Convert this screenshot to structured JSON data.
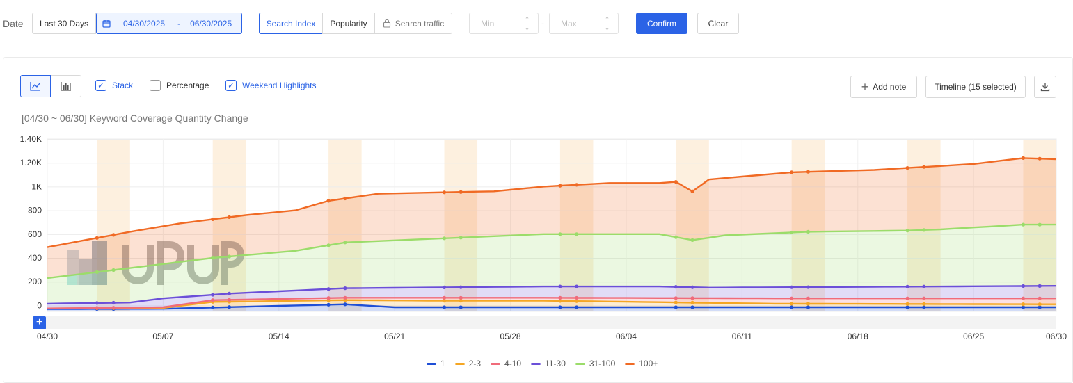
{
  "filters": {
    "date_label": "Date",
    "preset": "Last 30 Days",
    "start_date": "04/30/2025",
    "separator": "-",
    "end_date": "06/30/2025",
    "metric_tabs": [
      "Search Index",
      "Popularity",
      "Search traffic"
    ],
    "min_placeholder": "Min",
    "range_dash": "-",
    "max_placeholder": "Max",
    "confirm_label": "Confirm",
    "clear_label": "Clear"
  },
  "toolbar": {
    "stack_label": "Stack",
    "stack_checked": true,
    "percentage_label": "Percentage",
    "percentage_checked": false,
    "weekend_label": "Weekend Highlights",
    "weekend_checked": true,
    "add_note_label": "Add note",
    "timeline_label": "Timeline (15 selected)"
  },
  "chart_data": {
    "type": "area",
    "title": "[04/30 ~ 06/30] Keyword Coverage Quantity Change",
    "stacked": true,
    "weekend_highlights": true,
    "y_ticks": [
      "1.40K",
      "1.20K",
      "1K",
      "800",
      "600",
      "400",
      "200",
      "0"
    ],
    "x_ticks": [
      "04/30",
      "05/07",
      "05/14",
      "05/21",
      "05/28",
      "06/04",
      "06/11",
      "06/18",
      "06/25",
      "06/30"
    ],
    "ylim": [
      -50,
      1400
    ],
    "x_start": "04/30",
    "x_end": "06/30",
    "series": [
      {
        "name": "1",
        "color": "#1f4fd6",
        "stack_total": [
          [
            0,
            -30
          ],
          [
            7,
            -28
          ],
          [
            12,
            -10
          ],
          [
            18,
            10
          ],
          [
            21,
            -15
          ],
          [
            30,
            -15
          ],
          [
            44,
            -15
          ],
          [
            61,
            -15
          ]
        ]
      },
      {
        "name": "2-3",
        "color": "#f5a623",
        "stack_total": [
          [
            0,
            -25
          ],
          [
            7,
            -20
          ],
          [
            10,
            30
          ],
          [
            18,
            45
          ],
          [
            24,
            40
          ],
          [
            30,
            40
          ],
          [
            44,
            15
          ],
          [
            61,
            10
          ]
        ]
      },
      {
        "name": "4-10",
        "color": "#f06b7a",
        "stack_total": [
          [
            0,
            -25
          ],
          [
            7,
            -15
          ],
          [
            10,
            45
          ],
          [
            18,
            65
          ],
          [
            30,
            65
          ],
          [
            44,
            60
          ],
          [
            61,
            60
          ]
        ]
      },
      {
        "name": "11-30",
        "color": "#6b4fd8",
        "stack_total": [
          [
            0,
            15
          ],
          [
            5,
            25
          ],
          [
            7,
            60
          ],
          [
            11,
            100
          ],
          [
            18,
            145
          ],
          [
            30,
            160
          ],
          [
            37,
            160
          ],
          [
            40,
            150
          ],
          [
            61,
            165
          ]
        ]
      },
      {
        "name": "31-100",
        "color": "#9bdc6a",
        "stack_total": [
          [
            0,
            230
          ],
          [
            10,
            400
          ],
          [
            15,
            460
          ],
          [
            18,
            530
          ],
          [
            30,
            600
          ],
          [
            37,
            600
          ],
          [
            39,
            550
          ],
          [
            41,
            590
          ],
          [
            46,
            620
          ],
          [
            52,
            630
          ],
          [
            54,
            640
          ],
          [
            59,
            680
          ],
          [
            61,
            680
          ]
        ]
      },
      {
        "name": "100+",
        "color": "#f06a24",
        "stack_total": [
          [
            0,
            490
          ],
          [
            5,
            620
          ],
          [
            8,
            690
          ],
          [
            12,
            760
          ],
          [
            15,
            800
          ],
          [
            17,
            880
          ],
          [
            20,
            940
          ],
          [
            27,
            960
          ],
          [
            30,
            1000
          ],
          [
            34,
            1030
          ],
          [
            37,
            1030
          ],
          [
            38,
            1040
          ],
          [
            39,
            960
          ],
          [
            40,
            1060
          ],
          [
            45,
            1120
          ],
          [
            50,
            1140
          ],
          [
            56,
            1190
          ],
          [
            59,
            1240
          ],
          [
            61,
            1230
          ]
        ]
      }
    ]
  },
  "legend_items": [
    "1",
    "2-3",
    "4-10",
    "11-30",
    "31-100",
    "100+"
  ]
}
